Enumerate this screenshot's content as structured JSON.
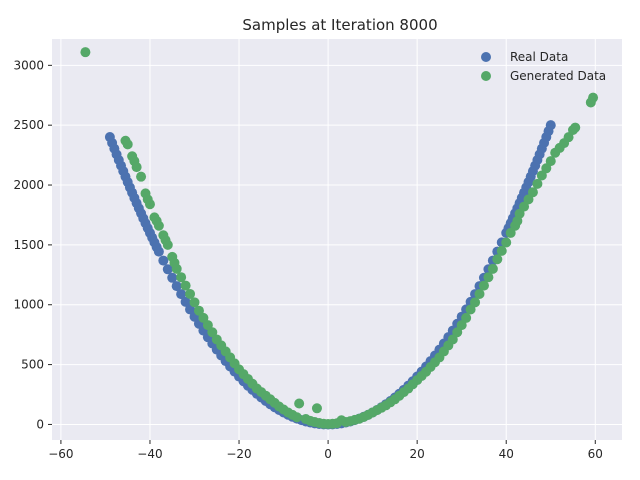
{
  "chart_data": {
    "type": "scatter",
    "title": "Samples at Iteration 8000",
    "xlabel": "",
    "ylabel": "",
    "xlim": [
      -62,
      66
    ],
    "ylim": [
      -130,
      3220
    ],
    "xticks": [
      -60,
      -40,
      -20,
      0,
      20,
      40,
      60
    ],
    "yticks": [
      0,
      500,
      1000,
      1500,
      2000,
      2500,
      3000
    ],
    "grid": true,
    "legend_position": "top-right",
    "series": [
      {
        "name": "Real Data",
        "color": "#4c72b0",
        "points": [
          [
            -49,
            2401
          ],
          [
            -48.5,
            2352
          ],
          [
            -48,
            2304
          ],
          [
            -47.5,
            2256
          ],
          [
            -47,
            2209
          ],
          [
            -46.5,
            2162
          ],
          [
            -46,
            2116
          ],
          [
            -45.5,
            2070
          ],
          [
            -45,
            2025
          ],
          [
            -44.5,
            1980
          ],
          [
            -44,
            1936
          ],
          [
            -43.5,
            1892
          ],
          [
            -43,
            1849
          ],
          [
            -42.5,
            1806
          ],
          [
            -42,
            1764
          ],
          [
            -41.5,
            1722
          ],
          [
            -41,
            1681
          ],
          [
            -40.5,
            1640
          ],
          [
            -40,
            1600
          ],
          [
            -39.5,
            1560
          ],
          [
            -39,
            1521
          ],
          [
            -38.5,
            1482
          ],
          [
            -38,
            1444
          ],
          [
            -37,
            1369
          ],
          [
            -36,
            1296
          ],
          [
            -35,
            1225
          ],
          [
            -34,
            1156
          ],
          [
            -33,
            1089
          ],
          [
            -32,
            1024
          ],
          [
            -31,
            961
          ],
          [
            -30,
            900
          ],
          [
            -29,
            841
          ],
          [
            -28,
            784
          ],
          [
            -27,
            729
          ],
          [
            -26,
            676
          ],
          [
            -25,
            625
          ],
          [
            -24,
            576
          ],
          [
            -23,
            529
          ],
          [
            -22,
            484
          ],
          [
            -21,
            441
          ],
          [
            -20,
            400
          ],
          [
            -19,
            361
          ],
          [
            -18,
            324
          ],
          [
            -17,
            289
          ],
          [
            -16,
            256
          ],
          [
            -15,
            225
          ],
          [
            -14,
            196
          ],
          [
            -13,
            169
          ],
          [
            -12,
            144
          ],
          [
            -11,
            121
          ],
          [
            -10,
            100
          ],
          [
            -9,
            81
          ],
          [
            -8,
            64
          ],
          [
            -7,
            49
          ],
          [
            -6,
            36
          ],
          [
            -5,
            25
          ],
          [
            -4,
            16
          ],
          [
            -3,
            9
          ],
          [
            -2,
            4
          ],
          [
            -1,
            1
          ],
          [
            0,
            0
          ],
          [
            1,
            1
          ],
          [
            2,
            4
          ],
          [
            3,
            9
          ],
          [
            4,
            16
          ],
          [
            5,
            25
          ],
          [
            6,
            36
          ],
          [
            7,
            49
          ],
          [
            8,
            64
          ],
          [
            9,
            81
          ],
          [
            10,
            100
          ],
          [
            11,
            121
          ],
          [
            12,
            144
          ],
          [
            13,
            169
          ],
          [
            14,
            196
          ],
          [
            15,
            225
          ],
          [
            16,
            256
          ],
          [
            17,
            289
          ],
          [
            18,
            324
          ],
          [
            19,
            361
          ],
          [
            20,
            400
          ],
          [
            21,
            441
          ],
          [
            22,
            484
          ],
          [
            23,
            529
          ],
          [
            24,
            576
          ],
          [
            25,
            625
          ],
          [
            26,
            676
          ],
          [
            27,
            729
          ],
          [
            28,
            784
          ],
          [
            29,
            841
          ],
          [
            30,
            900
          ],
          [
            31,
            961
          ],
          [
            32,
            1024
          ],
          [
            33,
            1089
          ],
          [
            34,
            1156
          ],
          [
            35,
            1225
          ],
          [
            36,
            1296
          ],
          [
            37,
            1369
          ],
          [
            38,
            1444
          ],
          [
            39,
            1521
          ],
          [
            40,
            1600
          ],
          [
            40.5,
            1640
          ],
          [
            41,
            1681
          ],
          [
            41.5,
            1722
          ],
          [
            42,
            1764
          ],
          [
            42.5,
            1806
          ],
          [
            43,
            1849
          ],
          [
            43.5,
            1892
          ],
          [
            44,
            1936
          ],
          [
            44.5,
            1980
          ],
          [
            45,
            2025
          ],
          [
            45.5,
            2070
          ],
          [
            46,
            2116
          ],
          [
            46.5,
            2162
          ],
          [
            47,
            2209
          ],
          [
            47.5,
            2256
          ],
          [
            48,
            2304
          ],
          [
            48.5,
            2352
          ],
          [
            49,
            2401
          ],
          [
            49.5,
            2450
          ],
          [
            50,
            2500
          ]
        ]
      },
      {
        "name": "Generated Data",
        "color": "#55a868",
        "points": [
          [
            -54.5,
            3110
          ],
          [
            -45.5,
            2370
          ],
          [
            -45,
            2340
          ],
          [
            -44,
            2240
          ],
          [
            -43.5,
            2200
          ],
          [
            -43,
            2150
          ],
          [
            -42,
            2070
          ],
          [
            -41,
            1930
          ],
          [
            -40.5,
            1880
          ],
          [
            -40,
            1840
          ],
          [
            -39,
            1730
          ],
          [
            -38.5,
            1700
          ],
          [
            -38,
            1660
          ],
          [
            -37,
            1580
          ],
          [
            -36.5,
            1540
          ],
          [
            -36,
            1500
          ],
          [
            -35,
            1400
          ],
          [
            -34.5,
            1350
          ],
          [
            -34,
            1300
          ],
          [
            -33,
            1230
          ],
          [
            -32,
            1160
          ],
          [
            -31,
            1090
          ],
          [
            -30,
            1020
          ],
          [
            -29,
            950
          ],
          [
            -28,
            890
          ],
          [
            -27,
            830
          ],
          [
            -26,
            770
          ],
          [
            -25,
            710
          ],
          [
            -24,
            660
          ],
          [
            -23,
            610
          ],
          [
            -22,
            560
          ],
          [
            -21,
            510
          ],
          [
            -20,
            460
          ],
          [
            -19,
            420
          ],
          [
            -18,
            380
          ],
          [
            -17,
            340
          ],
          [
            -16,
            300
          ],
          [
            -15,
            270
          ],
          [
            -14,
            240
          ],
          [
            -13,
            210
          ],
          [
            -12,
            180
          ],
          [
            -11,
            150
          ],
          [
            -10,
            125
          ],
          [
            -9,
            100
          ],
          [
            -8,
            80
          ],
          [
            -7,
            60
          ],
          [
            -6.5,
            175
          ],
          [
            -5,
            45
          ],
          [
            -4,
            30
          ],
          [
            -3,
            20
          ],
          [
            -2.5,
            135
          ],
          [
            -2,
            12
          ],
          [
            -1,
            6
          ],
          [
            0,
            4
          ],
          [
            1,
            6
          ],
          [
            2,
            10
          ],
          [
            3,
            35
          ],
          [
            4,
            20
          ],
          [
            5,
            28
          ],
          [
            6,
            38
          ],
          [
            7,
            48
          ],
          [
            8,
            62
          ],
          [
            9,
            80
          ],
          [
            10,
            100
          ],
          [
            11,
            120
          ],
          [
            12,
            140
          ],
          [
            13,
            160
          ],
          [
            14,
            185
          ],
          [
            15,
            210
          ],
          [
            16,
            240
          ],
          [
            17,
            270
          ],
          [
            18,
            300
          ],
          [
            19,
            335
          ],
          [
            20,
            370
          ],
          [
            21,
            405
          ],
          [
            22,
            440
          ],
          [
            23,
            480
          ],
          [
            24,
            520
          ],
          [
            25,
            560
          ],
          [
            26,
            610
          ],
          [
            27,
            660
          ],
          [
            28,
            710
          ],
          [
            29,
            770
          ],
          [
            30,
            830
          ],
          [
            31,
            890
          ],
          [
            32,
            960
          ],
          [
            33,
            1020
          ],
          [
            34,
            1090
          ],
          [
            35,
            1160
          ],
          [
            36,
            1230
          ],
          [
            37,
            1300
          ],
          [
            38,
            1380
          ],
          [
            39,
            1450
          ],
          [
            40,
            1520
          ],
          [
            41,
            1600
          ],
          [
            42,
            1660
          ],
          [
            42.5,
            1700
          ],
          [
            43,
            1760
          ],
          [
            44,
            1820
          ],
          [
            45,
            1880
          ],
          [
            46,
            1940
          ],
          [
            47,
            2010
          ],
          [
            48,
            2080
          ],
          [
            49,
            2140
          ],
          [
            50,
            2200
          ],
          [
            51,
            2270
          ],
          [
            52,
            2310
          ],
          [
            53,
            2350
          ],
          [
            54,
            2400
          ],
          [
            55,
            2460
          ],
          [
            55.5,
            2480
          ],
          [
            59,
            2690
          ],
          [
            59.5,
            2730
          ]
        ]
      }
    ]
  }
}
